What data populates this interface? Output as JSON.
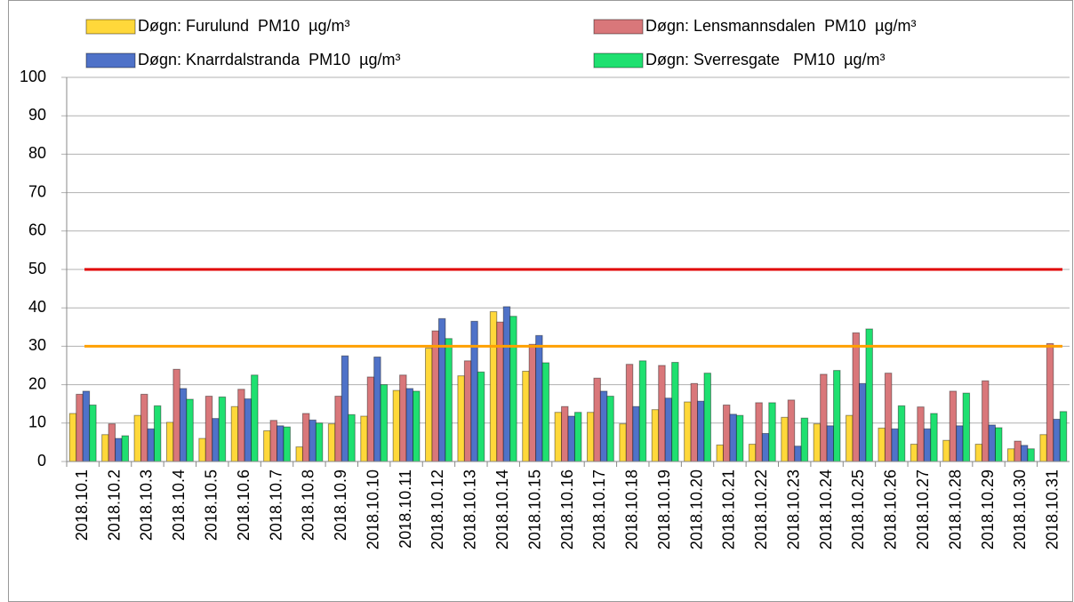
{
  "chart_data": {
    "type": "bar",
    "categories": [
      "2018.10.1",
      "2018.10.2",
      "2018.10.3",
      "2018.10.4",
      "2018.10.5",
      "2018.10.6",
      "2018.10.7",
      "2018.10.8",
      "2018.10.9",
      "2018.10.10",
      "2018.10.11",
      "2018.10.12",
      "2018.10.13",
      "2018.10.14",
      "2018.10.15",
      "2018.10.16",
      "2018.10.17",
      "2018.10.18",
      "2018.10.19",
      "2018.10.20",
      "2018.10.21",
      "2018.10.22",
      "2018.10.23",
      "2018.10.24",
      "2018.10.25",
      "2018.10.26",
      "2018.10.27",
      "2018.10.28",
      "2018.10.29",
      "2018.10.30",
      "2018.10.31"
    ],
    "series": [
      {
        "name": "Døgn: Furulund  PM10  µg/m³",
        "color": "#ffd83a",
        "values": [
          12.5,
          7,
          12,
          10.2,
          6,
          14.3,
          8,
          3.8,
          9.8,
          11.8,
          18.5,
          29.5,
          22.3,
          39,
          23.5,
          12.8,
          12.8,
          9.8,
          13.5,
          15.5,
          4.3,
          4.5,
          11.5,
          9.8,
          12,
          8.7,
          4.5,
          5.5,
          4.5,
          3.3,
          7
        ]
      },
      {
        "name": "Døgn: Lensmannsdalen  PM10  µg/m³",
        "color": "#d9777a",
        "values": [
          17.5,
          9.8,
          17.5,
          24,
          17,
          18.8,
          10.7,
          12.5,
          17,
          22,
          22.5,
          34,
          26.2,
          36.3,
          30.5,
          14.3,
          21.7,
          25.3,
          25,
          20.3,
          14.7,
          15.3,
          16,
          22.7,
          33.5,
          23,
          14.2,
          18.3,
          21,
          5.3,
          30.7
        ]
      },
      {
        "name": "Døgn: Knarrdalstranda  PM10  µg/m³",
        "color": "#4f72c8",
        "values": [
          18.3,
          6,
          8.5,
          19,
          11.2,
          16.3,
          9.3,
          10.8,
          27.5,
          27.2,
          19,
          37.2,
          36.5,
          40.3,
          32.8,
          11.8,
          18.3,
          14.3,
          16.5,
          15.7,
          12.3,
          7.3,
          4,
          9.3,
          20.3,
          8.5,
          8.5,
          9.3,
          9.5,
          4.2,
          11
        ]
      },
      {
        "name": "Døgn: Sverresgate   PM10  µg/m³",
        "color": "#1fe070",
        "values": [
          14.7,
          6.7,
          14.5,
          16.2,
          16.8,
          22.5,
          9,
          10,
          12.2,
          20,
          18.3,
          32,
          23.3,
          37.8,
          25.7,
          12.8,
          17,
          26.2,
          25.8,
          23,
          12,
          15.3,
          11.3,
          23.7,
          34.5,
          14.5,
          12.5,
          17.8,
          8.8,
          3.3,
          13
        ]
      }
    ],
    "reference_lines": [
      {
        "value": 50,
        "color": "#e00000"
      },
      {
        "value": 30,
        "color": "#ffa000"
      }
    ],
    "ylim": [
      0,
      100
    ],
    "yticks": [
      0,
      10,
      20,
      30,
      40,
      50,
      60,
      70,
      80,
      90,
      100
    ],
    "grid": true
  }
}
